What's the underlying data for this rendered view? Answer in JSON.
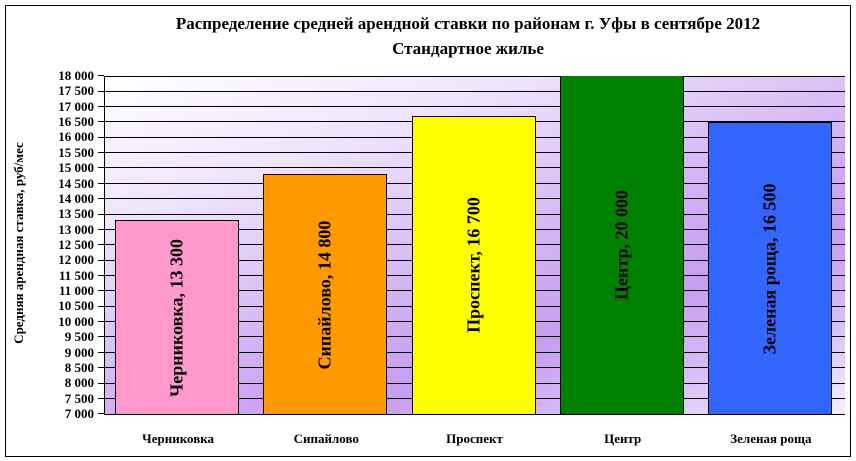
{
  "chart": {
    "title_line1": "Распределение средней арендной ставки по районам г. Уфы в сентябре 2012",
    "title_line2": "Стандартное жилье",
    "y_axis_label": "Средняя арендная ставка, руб/мес",
    "y_ticks": [
      "18 000",
      "17 500",
      "17 000",
      "16 500",
      "16 000",
      "15 500",
      "15 000",
      "14 500",
      "14 000",
      "13 500",
      "13 000",
      "12 500",
      "12 000",
      "11 500",
      "11 000",
      "10 500",
      "10 000",
      "9 500",
      "9 000",
      "8 500",
      "8 000",
      "7 500",
      "7 000"
    ],
    "bars": [
      {
        "category": "Черниковка",
        "value": 13300,
        "label": "Черниковка, 13 300",
        "color": "#ff99cc"
      },
      {
        "category": "Сипайлово",
        "value": 14800,
        "label": "Сипайлово, 14 800",
        "color": "#ff9900"
      },
      {
        "category": "Проспект",
        "value": 16700,
        "label": "Проспект, 16 700",
        "color": "#ffff00"
      },
      {
        "category": "Центр",
        "value": 20000,
        "label": "Центр, 20 000",
        "color": "#008000"
      },
      {
        "category": "Зеленая роща",
        "value": 16500,
        "label": "Зеленая роща, 16 500",
        "color": "#3366ff"
      }
    ]
  },
  "chart_data": {
    "type": "bar",
    "title": "Распределение средней арендной ставки по районам г. Уфы в сентябре 2012",
    "subtitle": "Стандартное жилье",
    "categories": [
      "Черниковка",
      "Сипайлово",
      "Проспект",
      "Центр",
      "Зеленая роща"
    ],
    "values": [
      13300,
      14800,
      16700,
      20000,
      16500
    ],
    "xlabel": "",
    "ylabel": "Средняя арендная ставка, руб/мес",
    "ylim": [
      7000,
      18000
    ],
    "ytick_step": 500,
    "grid": true,
    "legend": "none",
    "data_labels": [
      "Черниковка, 13 300",
      "Сипайлово, 14 800",
      "Проспект, 16 700",
      "Центр, 20 000",
      "Зеленая роща, 16 500"
    ],
    "colors": [
      "#ff99cc",
      "#ff9900",
      "#ffff00",
      "#008000",
      "#3366ff"
    ]
  }
}
